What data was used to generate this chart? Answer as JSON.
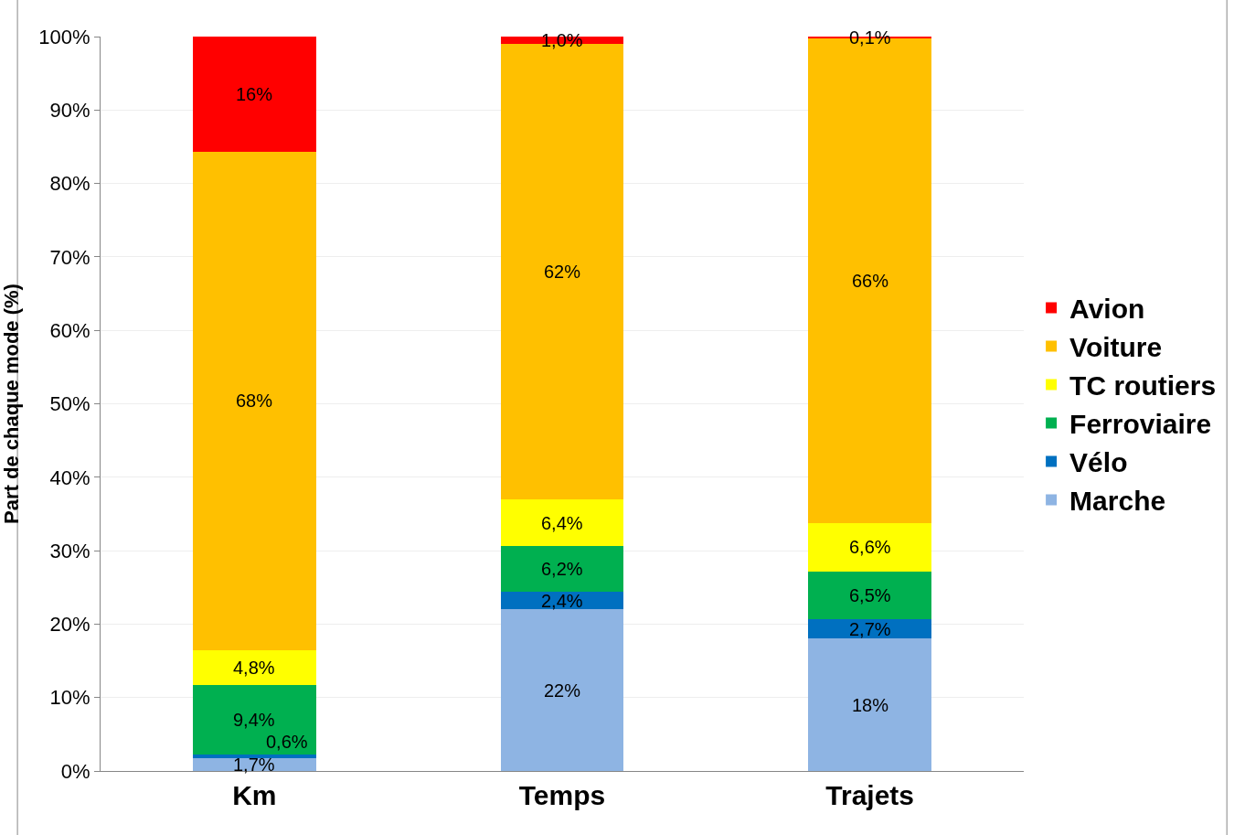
{
  "chart_data": {
    "type": "bar",
    "stacked": true,
    "ylabel": "Part de chaque mode (%)",
    "categories": [
      "Km",
      "Temps",
      "Trajets"
    ],
    "series": [
      {
        "name": "Marche",
        "color": "#8eb4e3",
        "values": [
          1.7,
          22,
          18
        ],
        "value_labels": [
          "1,7%",
          "22%",
          "18%"
        ]
      },
      {
        "name": "Vélo",
        "color": "#0070c0",
        "values": [
          0.6,
          2.4,
          2.7
        ],
        "value_labels": [
          "0,6%",
          "2,4%",
          "2,7%"
        ]
      },
      {
        "name": "Ferroviaire",
        "color": "#00b050",
        "values": [
          9.4,
          6.2,
          6.5
        ],
        "value_labels": [
          "9,4%",
          "6,2%",
          "6,5%"
        ]
      },
      {
        "name": "TC routiers",
        "color": "#ffff00",
        "values": [
          4.8,
          6.4,
          6.6
        ],
        "value_labels": [
          "4,8%",
          "6,4%",
          "6,6%"
        ]
      },
      {
        "name": "Voiture",
        "color": "#ffc000",
        "values": [
          67.8,
          62,
          66
        ],
        "value_labels": [
          "68%",
          "62%",
          "66%"
        ]
      },
      {
        "name": "Avion",
        "color": "#ff0000",
        "values": [
          15.7,
          1.0,
          0.1
        ],
        "value_labels": [
          "16%",
          "1,0%",
          "0,1%"
        ]
      }
    ],
    "ylim": [
      0,
      100
    ],
    "yticks": [
      {
        "value": 0,
        "label": "0%"
      },
      {
        "value": 10,
        "label": "10%"
      },
      {
        "value": 20,
        "label": "20%"
      },
      {
        "value": 30,
        "label": "30%"
      },
      {
        "value": 40,
        "label": "40%"
      },
      {
        "value": 50,
        "label": "50%"
      },
      {
        "value": 60,
        "label": "60%"
      },
      {
        "value": 70,
        "label": "70%"
      },
      {
        "value": 80,
        "label": "80%"
      },
      {
        "value": 90,
        "label": "90%"
      },
      {
        "value": 100,
        "label": "100%"
      }
    ],
    "grid": "y",
    "legend": "right"
  }
}
